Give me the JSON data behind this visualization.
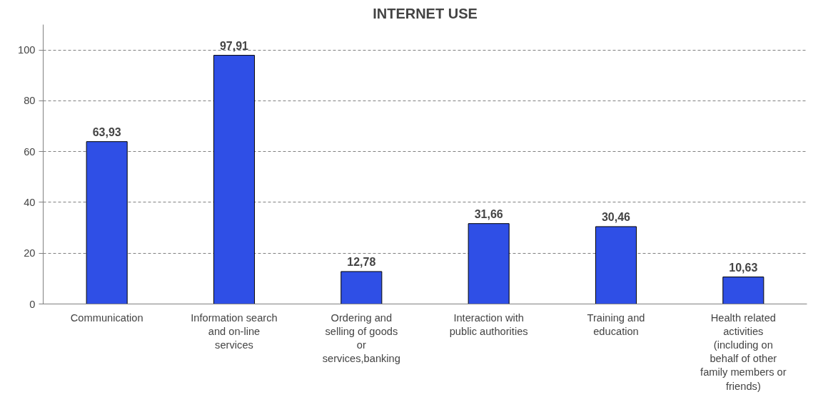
{
  "chart_data": {
    "type": "bar",
    "title": "INTERNET USE",
    "categories": [
      "Communication",
      "Information search and on-line services",
      "Ordering and selling of goods or services,banking",
      "Interaction with public authorities",
      "Training and education",
      "Health related activities (including on behalf of other family members or friends)"
    ],
    "values": [
      63.93,
      97.91,
      12.78,
      31.66,
      30.46,
      10.63
    ],
    "value_labels": [
      "63,93",
      "97,91",
      "12,78",
      "31,66",
      "30,46",
      "10,63"
    ],
    "color": "#2f4fe6",
    "ylim": [
      0,
      110
    ],
    "yticks": [
      0,
      20,
      40,
      60,
      80,
      100
    ],
    "grid": "y"
  }
}
